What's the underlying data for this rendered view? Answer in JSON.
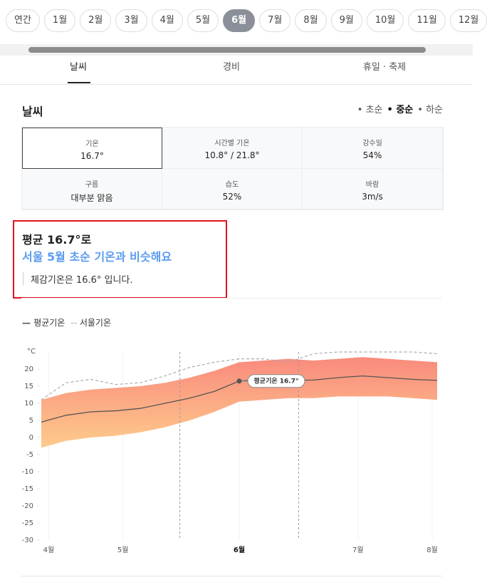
{
  "month_tabs": {
    "items": [
      "연간",
      "1월",
      "2월",
      "3월",
      "4월",
      "5월",
      "6월",
      "7월",
      "8월",
      "9월",
      "10월",
      "11월",
      "12월"
    ],
    "active": 6
  },
  "section_tabs": {
    "items": [
      "날씨",
      "경비",
      "휴일 · 축제"
    ],
    "active": 0
  },
  "weather": {
    "title": "날씨",
    "periods": {
      "items": [
        "초순",
        "중순",
        "하순"
      ],
      "active": 1
    },
    "stats": [
      {
        "label": "기온",
        "value": "16.7°"
      },
      {
        "label": "시간별 기온",
        "value": "10.8° / 21.8°"
      },
      {
        "label": "강수일",
        "value": "54%"
      },
      {
        "label": "구름",
        "value": "대부분 맑음"
      },
      {
        "label": "습도",
        "value": "52%"
      },
      {
        "label": "바람",
        "value": "3m/s"
      }
    ]
  },
  "summary": {
    "headline": "평균 16.7°로",
    "comparison": "서울 5월 초순 기온과 비슷해요",
    "feels_like": "체감기온은 16.6° 입니다."
  },
  "chart": {
    "type": "line",
    "y_unit": "°C",
    "x": [
      0,
      1,
      2,
      3,
      4,
      5,
      6,
      7,
      8,
      9,
      10,
      11,
      12,
      13,
      14,
      15,
      16
    ],
    "xlim": [
      0,
      16
    ],
    "xticks": [
      {
        "value": 0.3,
        "label": "4월"
      },
      {
        "value": 3.3,
        "label": "5월"
      },
      {
        "value": 8,
        "label": "6월"
      },
      {
        "value": 12.8,
        "label": "7월"
      },
      {
        "value": 15.8,
        "label": "8월"
      }
    ],
    "active_xtick": 2,
    "ylim": [
      -30,
      25
    ],
    "yticks": [
      20,
      15,
      10,
      5,
      0,
      -5,
      -10,
      -15,
      -20,
      -25,
      -30
    ],
    "series": [
      {
        "name": "평균기온",
        "color": "#555555",
        "values": [
          4.5,
          6.5,
          7.5,
          7.8,
          8.5,
          10,
          11.5,
          13.5,
          16.5,
          17,
          16.7,
          16.8,
          17.5,
          18,
          17.5,
          17,
          16.7
        ]
      },
      {
        "name": "서울기온",
        "color": "#aaaaaa",
        "values": [
          11,
          16,
          17,
          15.5,
          16,
          18,
          20.5,
          22,
          23,
          23,
          22,
          24.5,
          25,
          25,
          25,
          25,
          24.5
        ]
      }
    ],
    "band": {
      "upper": [
        11,
        13,
        14,
        14.5,
        15,
        16,
        17.5,
        19.5,
        22,
        22.5,
        23,
        22.5,
        23,
        23.5,
        23,
        22.5,
        22
      ],
      "lower": [
        -3,
        -1,
        0,
        0.5,
        1.5,
        3,
        5,
        7.5,
        10.5,
        11,
        11.5,
        11.5,
        12,
        12,
        12,
        11.5,
        11
      ],
      "colors": [
        "#f98a7d",
        "#fecb8c"
      ]
    },
    "vlines": [
      5.6,
      10.4
    ],
    "annotation": {
      "text": "평균기온 16.7°",
      "x": 8
    }
  }
}
